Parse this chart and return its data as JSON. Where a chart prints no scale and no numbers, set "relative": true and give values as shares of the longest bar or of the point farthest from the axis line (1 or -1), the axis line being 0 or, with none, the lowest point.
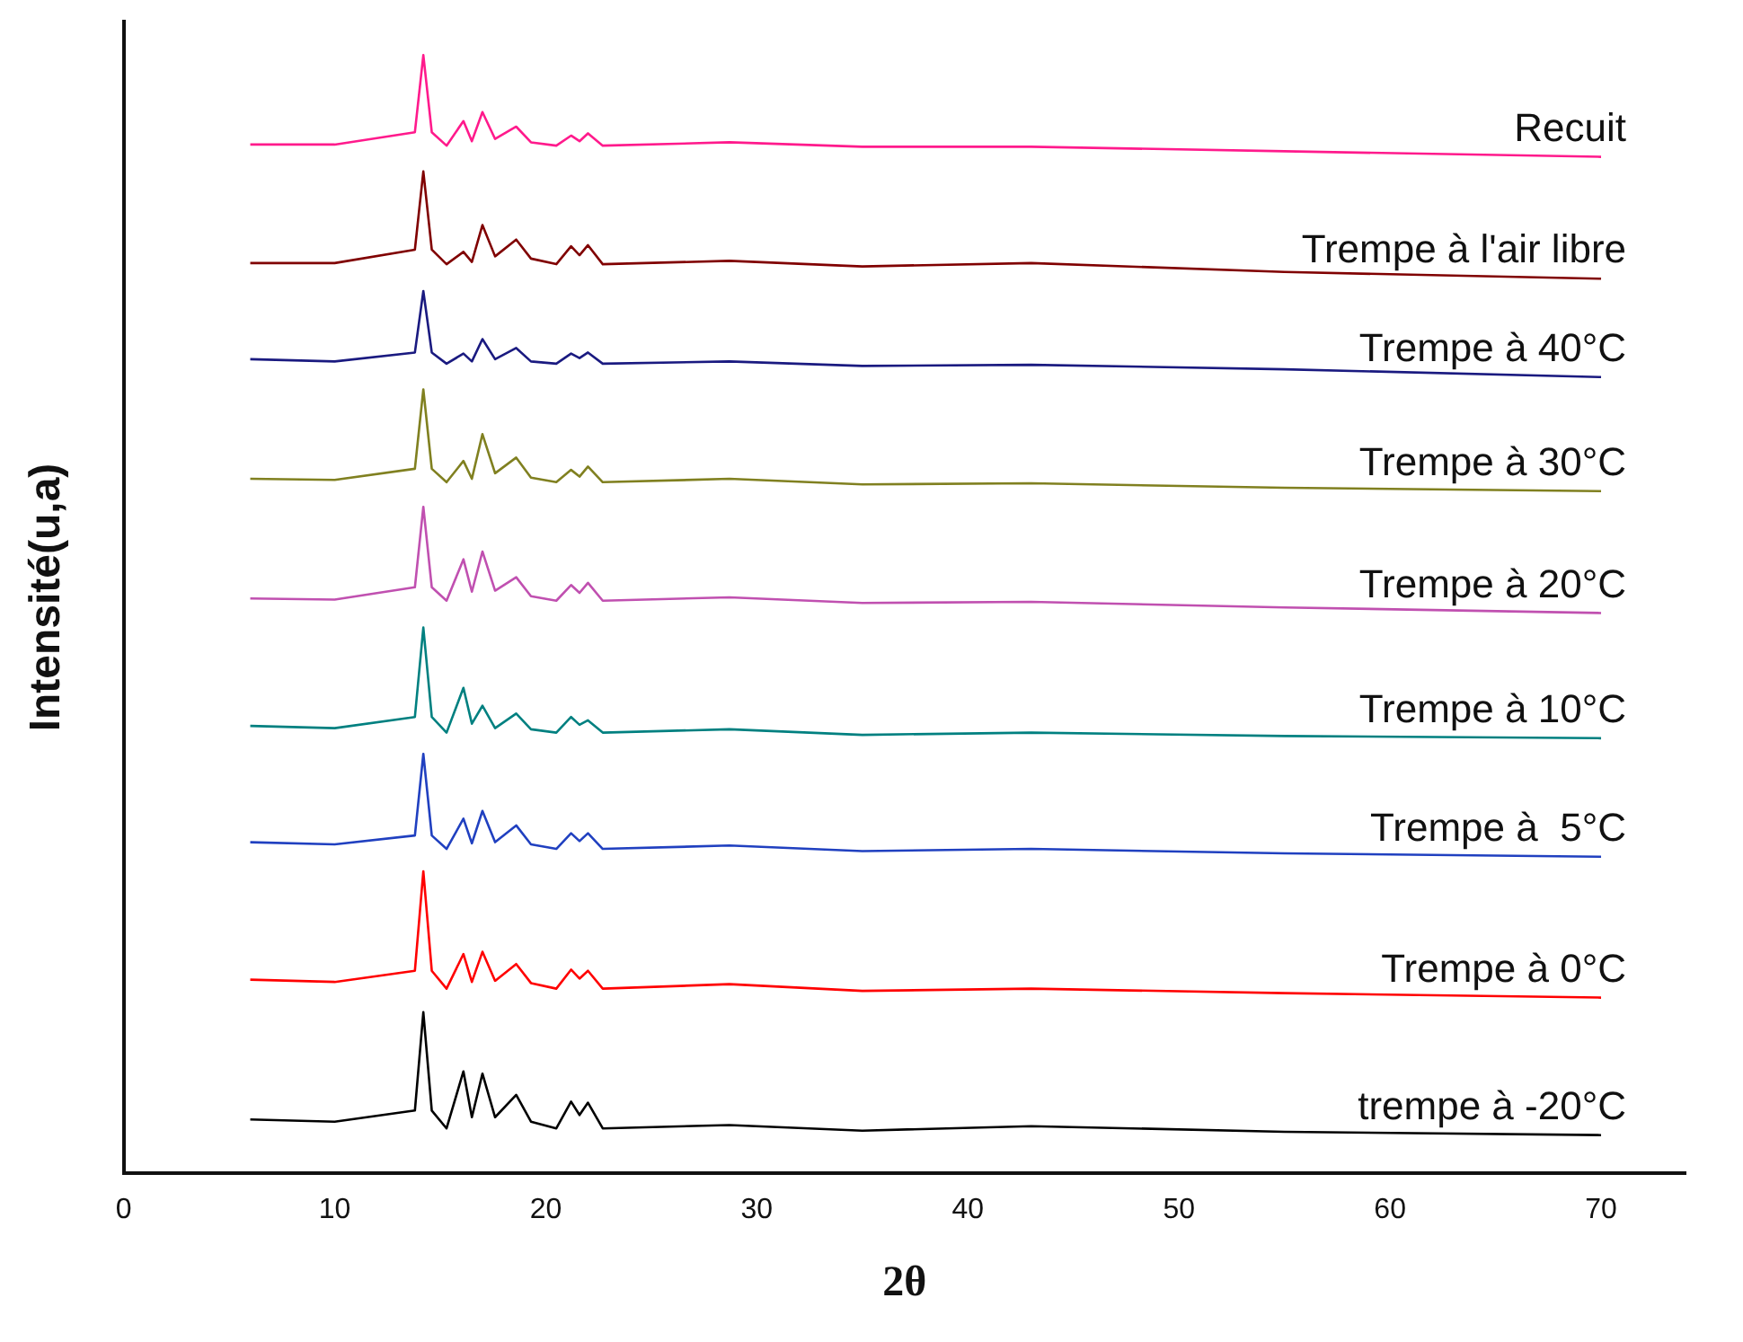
{
  "chart_data": {
    "type": "line",
    "xlabel": "2θ",
    "ylabel": "Intensité(u,a)",
    "relative": true,
    "xlim": [
      0,
      74
    ],
    "xticks": [
      0,
      10,
      20,
      30,
      40,
      50,
      60,
      70
    ],
    "grid": false,
    "marker": "none",
    "line_style": "solid",
    "x": [
      6,
      10,
      13.8,
      14.2,
      14.6,
      15.3,
      16.1,
      16.5,
      17.0,
      17.6,
      18.6,
      19.3,
      20.5,
      21.2,
      21.6,
      22.0,
      22.7,
      28.7,
      35,
      43,
      55,
      70
    ],
    "series": [
      {
        "name": "Recuit",
        "color": "#ff1a8c",
        "values": [
          0.92,
          0.92,
          0.931,
          1.0,
          0.931,
          0.919,
          0.941,
          0.923,
          0.949,
          0.925,
          0.936,
          0.922,
          0.919,
          0.928,
          0.923,
          0.93,
          0.919,
          0.922,
          0.918,
          0.918,
          0.914,
          0.909
        ]
      },
      {
        "name": "Trempe à l'air libre",
        "color": "#800000",
        "values": [
          0.814,
          0.814,
          0.826,
          0.896,
          0.826,
          0.813,
          0.824,
          0.815,
          0.848,
          0.82,
          0.835,
          0.818,
          0.813,
          0.829,
          0.821,
          0.83,
          0.813,
          0.816,
          0.811,
          0.814,
          0.806,
          0.8
        ]
      },
      {
        "name": "Trempe à 40°C",
        "color": "#1a1a80",
        "values": [
          0.728,
          0.726,
          0.734,
          0.789,
          0.734,
          0.724,
          0.733,
          0.726,
          0.746,
          0.728,
          0.738,
          0.726,
          0.724,
          0.733,
          0.729,
          0.734,
          0.724,
          0.726,
          0.722,
          0.723,
          0.719,
          0.712
        ]
      },
      {
        "name": "Trempe à 30°C",
        "color": "#808020",
        "values": [
          0.621,
          0.62,
          0.63,
          0.701,
          0.63,
          0.618,
          0.637,
          0.621,
          0.661,
          0.626,
          0.64,
          0.622,
          0.618,
          0.629,
          0.623,
          0.632,
          0.618,
          0.621,
          0.616,
          0.617,
          0.613,
          0.61
        ]
      },
      {
        "name": "Trempe à 20°C",
        "color": "#c050b0",
        "values": [
          0.514,
          0.513,
          0.524,
          0.596,
          0.524,
          0.512,
          0.549,
          0.52,
          0.556,
          0.521,
          0.533,
          0.516,
          0.512,
          0.526,
          0.519,
          0.528,
          0.512,
          0.515,
          0.51,
          0.511,
          0.506,
          0.501
        ]
      },
      {
        "name": "Trempe à 10°C",
        "color": "#008080",
        "values": [
          0.4,
          0.398,
          0.408,
          0.488,
          0.408,
          0.394,
          0.434,
          0.402,
          0.418,
          0.398,
          0.411,
          0.397,
          0.394,
          0.408,
          0.401,
          0.405,
          0.394,
          0.397,
          0.392,
          0.394,
          0.391,
          0.389
        ]
      },
      {
        "name": "Trempe à  5°C",
        "color": "#2040c0",
        "values": [
          0.296,
          0.294,
          0.302,
          0.375,
          0.302,
          0.29,
          0.317,
          0.295,
          0.324,
          0.296,
          0.311,
          0.294,
          0.29,
          0.304,
          0.297,
          0.304,
          0.29,
          0.293,
          0.288,
          0.29,
          0.286,
          0.283
        ]
      },
      {
        "name": "Trempe à 0°C",
        "color": "#ff0000",
        "values": [
          0.173,
          0.171,
          0.181,
          0.27,
          0.181,
          0.165,
          0.196,
          0.171,
          0.198,
          0.172,
          0.187,
          0.17,
          0.165,
          0.182,
          0.174,
          0.181,
          0.165,
          0.169,
          0.163,
          0.165,
          0.161,
          0.157
        ]
      },
      {
        "name": "trempe à -20°C",
        "color": "#000000",
        "values": [
          0.048,
          0.046,
          0.056,
          0.144,
          0.056,
          0.04,
          0.091,
          0.05,
          0.089,
          0.05,
          0.07,
          0.046,
          0.04,
          0.064,
          0.052,
          0.063,
          0.04,
          0.043,
          0.038,
          0.042,
          0.037,
          0.034
        ]
      }
    ]
  }
}
